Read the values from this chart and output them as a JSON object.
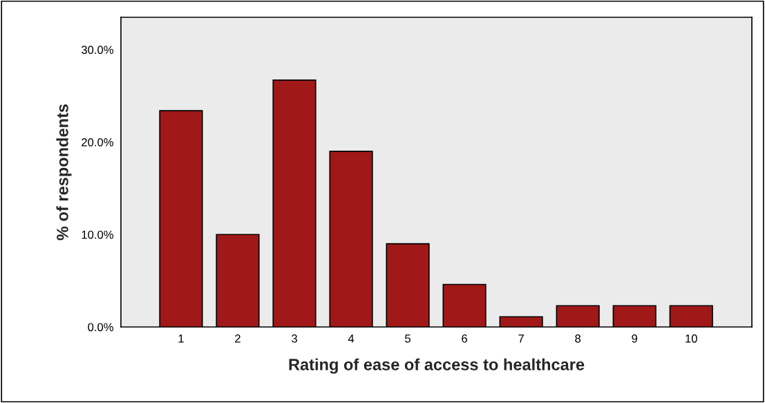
{
  "chart_data": {
    "type": "bar",
    "xlabel": "Rating of ease of access to healthcare",
    "ylabel": "% of respondents",
    "categories": [
      "1",
      "2",
      "3",
      "4",
      "5",
      "6",
      "7",
      "8",
      "9",
      "10"
    ],
    "values": [
      23.4,
      10.0,
      26.7,
      19.0,
      9.0,
      4.6,
      1.1,
      2.3,
      2.3,
      2.3
    ],
    "color": "#a01818",
    "ylim": [
      0,
      33.5
    ],
    "yticks": [
      {
        "value": 0,
        "label": "0.0%"
      },
      {
        "value": 10,
        "label": "10.0%"
      },
      {
        "value": 20,
        "label": "20.0%"
      },
      {
        "value": 30,
        "label": "30.0%"
      }
    ],
    "grid": false,
    "legend": false
  }
}
